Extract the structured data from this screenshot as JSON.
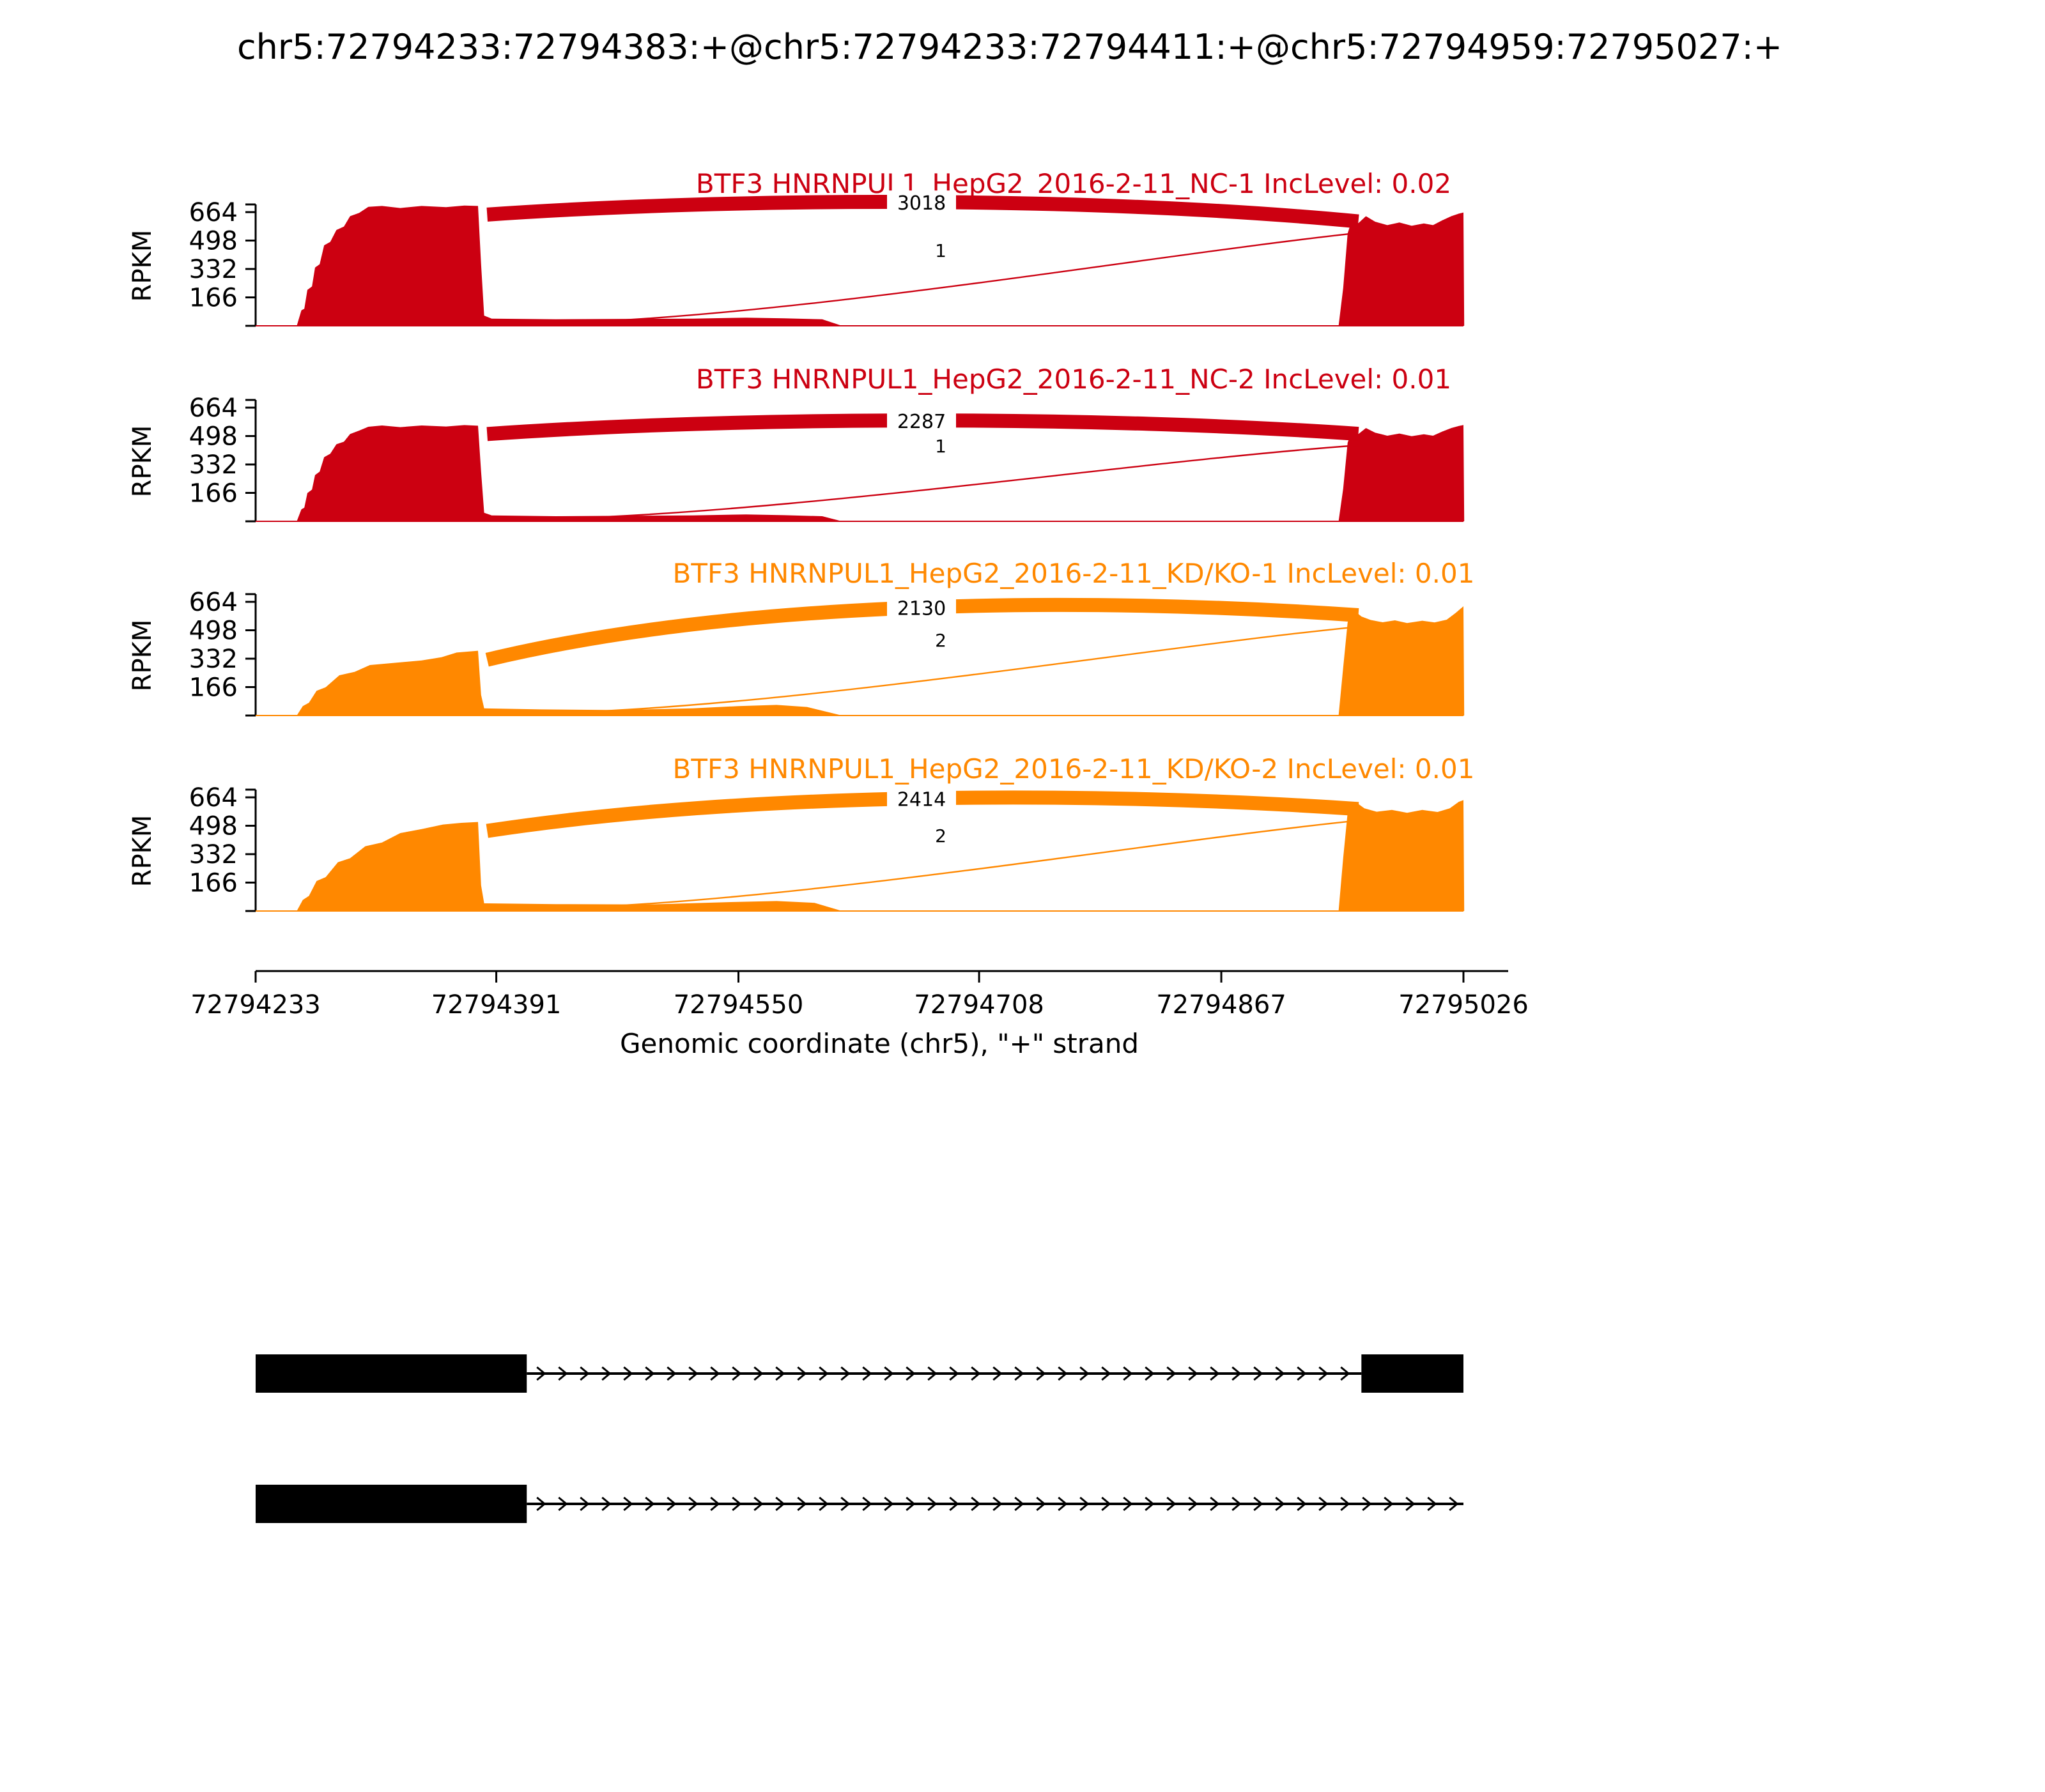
{
  "title": "chr5:72794233:72794383:+@chr5:72794233:72794411:+@chr5:72794959:72795027:+",
  "chart_data": {
    "type": "area",
    "variant": "rna-seq-sashimi-plot",
    "ylabel": "RPKM",
    "yticks": [
      166,
      332,
      498,
      664
    ],
    "ylim": [
      0,
      710
    ],
    "xlabel": "Genomic coordinate (chr5), \"+\" strand",
    "xticks": [
      72794233,
      72794391,
      72794550,
      72794708,
      72794867,
      72795026
    ],
    "xlim": [
      72794233,
      72795026
    ],
    "tracks": [
      {
        "label": "BTF3 HNRNPUL1_HepG2_2016-2-11_NC-1 IncLevel: 0.02",
        "color": "#CC0011",
        "inc_level": 0.02,
        "junctions": [
          {
            "count": 3018,
            "arc": "thick"
          },
          {
            "count": 1,
            "arc": "thin"
          }
        ],
        "coverage": [
          [
            72794260,
            0
          ],
          [
            72794263,
            90
          ],
          [
            72794265,
            100
          ],
          [
            72794267,
            210
          ],
          [
            72794270,
            230
          ],
          [
            72794272,
            340
          ],
          [
            72794275,
            360
          ],
          [
            72794278,
            470
          ],
          [
            72794282,
            490
          ],
          [
            72794286,
            560
          ],
          [
            72794291,
            580
          ],
          [
            72794295,
            640
          ],
          [
            72794301,
            660
          ],
          [
            72794307,
            695
          ],
          [
            72794316,
            700
          ],
          [
            72794328,
            688
          ],
          [
            72794342,
            700
          ],
          [
            72794358,
            693
          ],
          [
            72794370,
            702
          ],
          [
            72794379,
            700
          ],
          [
            72794381,
            360
          ],
          [
            72794383,
            60
          ],
          [
            72794388,
            42
          ],
          [
            72794430,
            38
          ],
          [
            72794470,
            40
          ],
          [
            72794520,
            42
          ],
          [
            72794555,
            48
          ],
          [
            72794580,
            44
          ],
          [
            72794605,
            38
          ],
          [
            72794618,
            0
          ],
          [
            72794944,
            0
          ],
          [
            72794947,
            220
          ],
          [
            72794950,
            540
          ],
          [
            72794953,
            625
          ],
          [
            72794957,
            600
          ],
          [
            72794962,
            640
          ],
          [
            72794968,
            608
          ],
          [
            72794976,
            588
          ],
          [
            72794984,
            604
          ],
          [
            72794992,
            584
          ],
          [
            72795000,
            598
          ],
          [
            72795006,
            588
          ],
          [
            72795012,
            616
          ],
          [
            72795018,
            640
          ],
          [
            72795023,
            655
          ],
          [
            72795026,
            662
          ],
          [
            72795026.5,
            0
          ]
        ]
      },
      {
        "label": "BTF3 HNRNPUL1_HepG2_2016-2-11_NC-2 IncLevel: 0.01",
        "color": "#CC0011",
        "inc_level": 0.01,
        "junctions": [
          {
            "count": 2287,
            "arc": "thick"
          },
          {
            "count": 1,
            "arc": "thin"
          }
        ],
        "coverage": [
          [
            72794260,
            0
          ],
          [
            72794263,
            70
          ],
          [
            72794265,
            80
          ],
          [
            72794267,
            165
          ],
          [
            72794270,
            185
          ],
          [
            72794272,
            270
          ],
          [
            72794275,
            290
          ],
          [
            72794278,
            375
          ],
          [
            72794282,
            395
          ],
          [
            72794286,
            450
          ],
          [
            72794291,
            465
          ],
          [
            72794295,
            510
          ],
          [
            72794301,
            530
          ],
          [
            72794307,
            552
          ],
          [
            72794316,
            560
          ],
          [
            72794328,
            550
          ],
          [
            72794342,
            560
          ],
          [
            72794358,
            554
          ],
          [
            72794370,
            562
          ],
          [
            72794379,
            558
          ],
          [
            72794381,
            290
          ],
          [
            72794383,
            50
          ],
          [
            72794388,
            34
          ],
          [
            72794430,
            30
          ],
          [
            72794470,
            32
          ],
          [
            72794520,
            34
          ],
          [
            72794555,
            40
          ],
          [
            72794580,
            36
          ],
          [
            72794605,
            30
          ],
          [
            72794618,
            0
          ],
          [
            72794944,
            0
          ],
          [
            72794947,
            190
          ],
          [
            72794950,
            460
          ],
          [
            72794953,
            530
          ],
          [
            72794957,
            510
          ],
          [
            72794962,
            545
          ],
          [
            72794968,
            518
          ],
          [
            72794976,
            500
          ],
          [
            72794984,
            513
          ],
          [
            72794992,
            497
          ],
          [
            72795000,
            508
          ],
          [
            72795006,
            500
          ],
          [
            72795012,
            524
          ],
          [
            72795018,
            545
          ],
          [
            72795023,
            557
          ],
          [
            72795026,
            563
          ],
          [
            72795026.5,
            0
          ]
        ]
      },
      {
        "label": "BTF3 HNRNPUL1_HepG2_2016-2-11_KD/KO-1 IncLevel: 0.01",
        "color": "#FF8800",
        "inc_level": 0.01,
        "junctions": [
          {
            "count": 2130,
            "arc": "thick"
          },
          {
            "count": 2,
            "arc": "thin"
          }
        ],
        "coverage": [
          [
            72794260,
            0
          ],
          [
            72794264,
            55
          ],
          [
            72794268,
            75
          ],
          [
            72794273,
            145
          ],
          [
            72794279,
            165
          ],
          [
            72794288,
            235
          ],
          [
            72794298,
            255
          ],
          [
            72794308,
            295
          ],
          [
            72794325,
            308
          ],
          [
            72794342,
            322
          ],
          [
            72794355,
            340
          ],
          [
            72794365,
            368
          ],
          [
            72794379,
            378
          ],
          [
            72794381,
            120
          ],
          [
            72794383,
            42
          ],
          [
            72794420,
            36
          ],
          [
            72794470,
            32
          ],
          [
            72794520,
            42
          ],
          [
            72794550,
            55
          ],
          [
            72794575,
            62
          ],
          [
            72794595,
            50
          ],
          [
            72794618,
            0
          ],
          [
            72794944,
            0
          ],
          [
            72794947,
            280
          ],
          [
            72794950,
            545
          ],
          [
            72794954,
            615
          ],
          [
            72794959,
            578
          ],
          [
            72794965,
            558
          ],
          [
            72794973,
            545
          ],
          [
            72794981,
            556
          ],
          [
            72794989,
            540
          ],
          [
            72794999,
            554
          ],
          [
            72795007,
            544
          ],
          [
            72795015,
            560
          ],
          [
            72795021,
            600
          ],
          [
            72795026,
            638
          ],
          [
            72795026.5,
            0
          ]
        ]
      },
      {
        "label": "BTF3 HNRNPUL1_HepG2_2016-2-11_KD/KO-2 IncLevel: 0.01",
        "color": "#FF8800",
        "inc_level": 0.01,
        "junctions": [
          {
            "count": 2414,
            "arc": "thick"
          },
          {
            "count": 2,
            "arc": "thin"
          }
        ],
        "coverage": [
          [
            72794260,
            0
          ],
          [
            72794264,
            65
          ],
          [
            72794268,
            88
          ],
          [
            72794273,
            175
          ],
          [
            72794279,
            198
          ],
          [
            72794287,
            285
          ],
          [
            72794295,
            308
          ],
          [
            72794305,
            378
          ],
          [
            72794316,
            400
          ],
          [
            72794328,
            455
          ],
          [
            72794342,
            478
          ],
          [
            72794356,
            505
          ],
          [
            72794368,
            515
          ],
          [
            72794379,
            520
          ],
          [
            72794381,
            150
          ],
          [
            72794383,
            45
          ],
          [
            72794430,
            40
          ],
          [
            72794490,
            38
          ],
          [
            72794545,
            52
          ],
          [
            72794575,
            58
          ],
          [
            72794600,
            48
          ],
          [
            72794618,
            0
          ],
          [
            72794944,
            0
          ],
          [
            72794947,
            310
          ],
          [
            72794950,
            575
          ],
          [
            72794955,
            638
          ],
          [
            72794961,
            600
          ],
          [
            72794969,
            580
          ],
          [
            72794979,
            590
          ],
          [
            72794989,
            574
          ],
          [
            72794999,
            590
          ],
          [
            72795009,
            578
          ],
          [
            72795017,
            600
          ],
          [
            72795023,
            638
          ],
          [
            72795026,
            648
          ],
          [
            72795026.5,
            0
          ]
        ]
      }
    ],
    "junction_span": [
      72794385,
      72794957
    ],
    "isoforms": [
      {
        "exons": [
          [
            72794233,
            72794411
          ],
          [
            72794959,
            72795026
          ]
        ],
        "intron": [
          72794411,
          72794959
        ]
      },
      {
        "exons": [
          [
            72794233,
            72794411
          ]
        ],
        "intron": [
          72794411,
          72795026
        ]
      }
    ]
  }
}
